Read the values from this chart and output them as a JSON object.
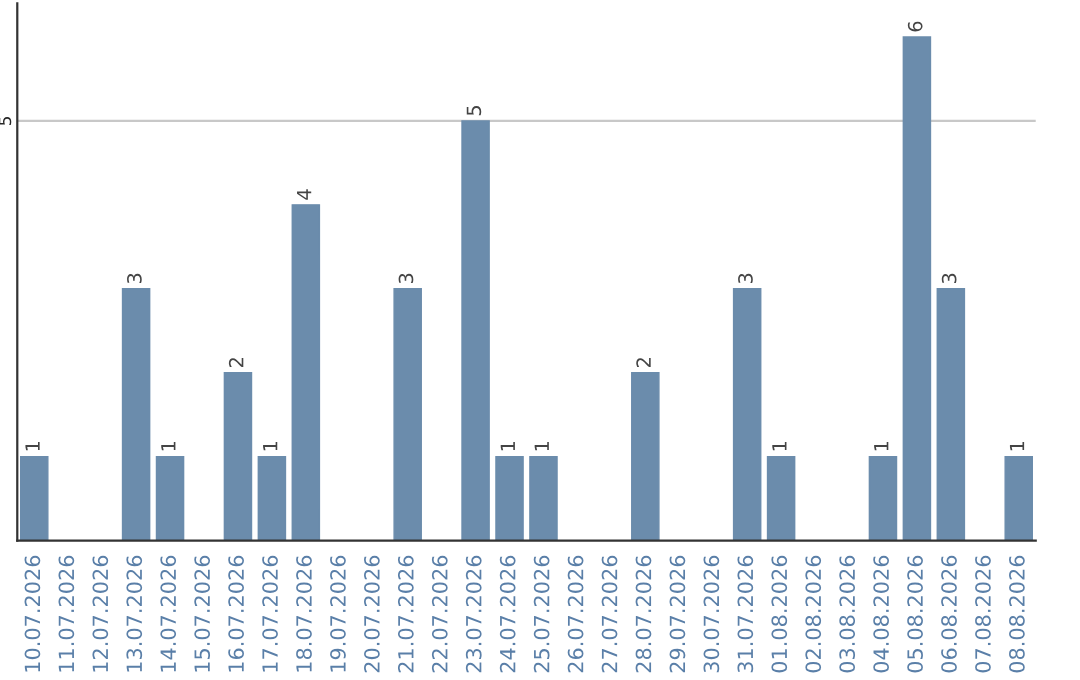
{
  "chart_data": {
    "type": "bar",
    "categories": [
      "10.07.2026",
      "11.07.2026",
      "12.07.2026",
      "13.07.2026",
      "14.07.2026",
      "15.07.2026",
      "16.07.2026",
      "17.07.2026",
      "18.07.2026",
      "19.07.2026",
      "20.07.2026",
      "21.07.2026",
      "22.07.2026",
      "23.07.2026",
      "24.07.2026",
      "25.07.2026",
      "26.07.2026",
      "27.07.2026",
      "28.07.2026",
      "29.07.2026",
      "30.07.2026",
      "31.07.2026",
      "01.08.2026",
      "02.08.2026",
      "03.08.2026",
      "04.08.2026",
      "05.08.2026",
      "06.08.2026",
      "07.08.2026",
      "08.08.2026"
    ],
    "values": [
      1,
      0,
      0,
      3,
      1,
      0,
      2,
      1,
      4,
      0,
      0,
      3,
      0,
      5,
      1,
      1,
      0,
      0,
      2,
      0,
      0,
      3,
      1,
      0,
      0,
      1,
      6,
      3,
      0,
      1
    ],
    "value_labels": [
      "1",
      null,
      null,
      "3",
      "1",
      null,
      "2",
      "1",
      "4",
      null,
      null,
      "3",
      null,
      "5",
      "1",
      "1",
      null,
      null,
      "2",
      null,
      null,
      "3",
      "1",
      null,
      null,
      "1",
      "6",
      "3",
      null,
      "1"
    ],
    "color": "#6b8cac",
    "ylim": [
      0,
      6.4
    ],
    "yticks": [
      5
    ],
    "grid": "y"
  }
}
